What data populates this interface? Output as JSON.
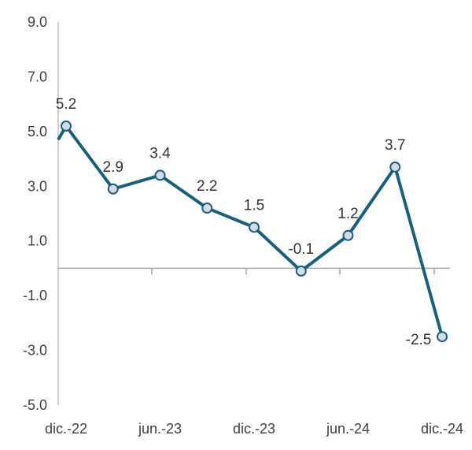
{
  "chart_data": {
    "type": "line",
    "x_tick_labels": [
      "dic.-22",
      "jun.-23",
      "dic.-23",
      "jun.-24",
      "dic.-24"
    ],
    "y_tick_labels": [
      "9.0",
      "7.0",
      "5.0",
      "3.0",
      "1.0",
      "-1.0",
      "-3.0",
      "-5.0"
    ],
    "ylim": [
      -5.0,
      9.0
    ],
    "y_ticks": [
      9.0,
      7.0,
      5.0,
      3.0,
      1.0,
      -1.0,
      -3.0,
      -5.0
    ],
    "grid": false,
    "series": [
      {
        "values": [
          5.2,
          2.9,
          3.4,
          2.2,
          1.5,
          -0.1,
          1.2,
          3.7,
          -2.5
        ],
        "labels": [
          "5.2",
          "2.9",
          "3.4",
          "2.2",
          "1.5",
          "-0.1",
          "1.2",
          "3.7",
          "-2.5"
        ],
        "leading_value": 4.7
      }
    ],
    "colors": {
      "line": "#17607f",
      "marker_fill": "#d4dde6",
      "marker_stroke": "#17607f",
      "axis": "#bfbfbf",
      "zero_line": "#a6a6a6"
    }
  }
}
